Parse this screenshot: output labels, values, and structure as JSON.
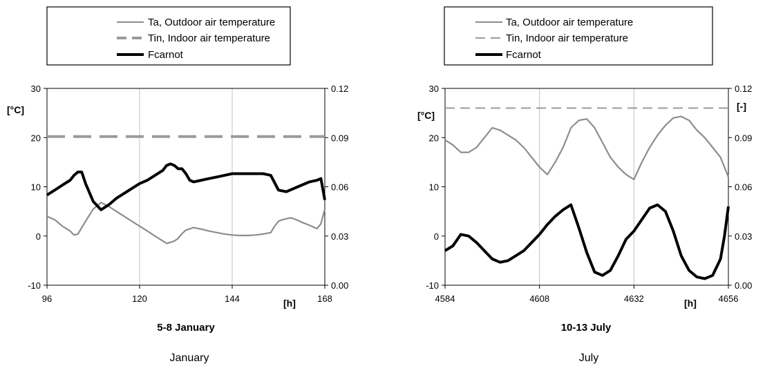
{
  "legend": {
    "ta": "Ta, Outdoor air temperature",
    "tin": "Tin, Indoor air temperature",
    "fc": "Fcarnot"
  },
  "captions": {
    "left": "January",
    "right": "July"
  },
  "colors": {
    "ta": "#8c8c8c",
    "tin": "#9a9a9a",
    "fc": "#000000",
    "grid": "#c0c0c0"
  },
  "chart_data": [
    {
      "type": "line",
      "xlabel": "5-8 January",
      "x_unit": "[h]",
      "y_left_unit": "[°C]",
      "y_right_unit": "",
      "xlim": [
        96,
        168
      ],
      "ylim_left": [
        -10,
        30
      ],
      "ylim_right": [
        0.0,
        0.12
      ],
      "x_ticks": [
        "96",
        "120",
        "144",
        "168"
      ],
      "y_left_ticks": [
        "-10",
        "0",
        "10",
        "20",
        "30"
      ],
      "y_right_ticks": [
        "0.00",
        "0.03",
        "0.06",
        "0.09",
        "0.12"
      ],
      "series": [
        {
          "name": "Ta, Outdoor air temperature",
          "axis": "left",
          "x": [
            96,
            98,
            100,
            102,
            103,
            104,
            106,
            108,
            110,
            112,
            114,
            116,
            118,
            120,
            122,
            124,
            126,
            127,
            128,
            129,
            130,
            131,
            132,
            134,
            136,
            138,
            140,
            142,
            144,
            146,
            148,
            150,
            152,
            154,
            155,
            156,
            157,
            158,
            159,
            160,
            162,
            164,
            166,
            167,
            168
          ],
          "y": [
            4.0,
            3.3,
            2.0,
            1.0,
            0.2,
            0.4,
            3.0,
            5.5,
            6.8,
            6.0,
            5.0,
            4.0,
            3.0,
            2.0,
            1.0,
            0.0,
            -1.0,
            -1.5,
            -1.3,
            -1.0,
            -0.5,
            0.5,
            1.2,
            1.7,
            1.4,
            1.0,
            0.7,
            0.4,
            0.2,
            0.1,
            0.1,
            0.2,
            0.4,
            0.7,
            2.0,
            3.0,
            3.3,
            3.5,
            3.7,
            3.5,
            2.8,
            2.2,
            1.5,
            2.5,
            5.5
          ]
        },
        {
          "name": "Tin, Indoor air temperature",
          "axis": "left",
          "x": [
            96,
            168
          ],
          "y": [
            20.2,
            20.2
          ]
        },
        {
          "name": "Fcarnot",
          "axis": "right",
          "x": [
            96,
            98,
            100,
            102,
            103,
            104,
            105,
            106,
            108,
            110,
            112,
            114,
            116,
            118,
            120,
            122,
            124,
            126,
            127,
            128,
            129,
            130,
            131,
            132,
            133,
            134,
            136,
            138,
            140,
            142,
            144,
            146,
            148,
            150,
            152,
            154,
            156,
            158,
            160,
            162,
            164,
            166,
            167,
            168
          ],
          "y": [
            0.055,
            0.058,
            0.061,
            0.064,
            0.067,
            0.069,
            0.069,
            0.062,
            0.051,
            0.046,
            0.049,
            0.053,
            0.056,
            0.059,
            0.062,
            0.064,
            0.067,
            0.07,
            0.073,
            0.074,
            0.073,
            0.071,
            0.071,
            0.068,
            0.064,
            0.063,
            0.064,
            0.065,
            0.066,
            0.067,
            0.068,
            0.068,
            0.068,
            0.068,
            0.068,
            0.067,
            0.058,
            0.057,
            0.059,
            0.061,
            0.063,
            0.064,
            0.065,
            0.052
          ]
        }
      ]
    },
    {
      "type": "line",
      "xlabel": "10-13 July",
      "x_unit": "[h]",
      "y_left_unit": "[°C]",
      "y_right_unit": "[-]",
      "xlim": [
        4584,
        4656
      ],
      "ylim_left": [
        -10,
        30
      ],
      "ylim_right": [
        0.0,
        0.12
      ],
      "x_ticks": [
        "4584",
        "4608",
        "4632",
        "4656"
      ],
      "y_left_ticks": [
        "-10",
        "0",
        "10",
        "20",
        "30"
      ],
      "y_right_ticks": [
        "0.00",
        "0.03",
        "0.06",
        "0.09",
        "0.12"
      ],
      "series": [
        {
          "name": "Ta, Outdoor air temperature",
          "axis": "left",
          "x": [
            4584,
            4586,
            4588,
            4590,
            4592,
            4594,
            4596,
            4598,
            4600,
            4602,
            4604,
            4606,
            4608,
            4610,
            4612,
            4614,
            4616,
            4618,
            4620,
            4622,
            4624,
            4626,
            4628,
            4630,
            4632,
            4634,
            4636,
            4638,
            4640,
            4642,
            4644,
            4646,
            4648,
            4650,
            4652,
            4654,
            4655,
            4656
          ],
          "y": [
            19.5,
            18.5,
            17.0,
            17.0,
            18.0,
            20.0,
            22.0,
            21.5,
            20.5,
            19.5,
            18.0,
            16.0,
            14.0,
            12.5,
            15.0,
            18.0,
            22.0,
            23.5,
            23.8,
            22.0,
            19.0,
            16.0,
            14.0,
            12.5,
            11.5,
            15.0,
            18.0,
            20.5,
            22.5,
            24.0,
            24.3,
            23.5,
            21.5,
            20.0,
            18.0,
            16.0,
            14.0,
            12.0
          ]
        },
        {
          "name": "Tin, Indoor air temperature",
          "axis": "left",
          "x": [
            4584,
            4656
          ],
          "y": [
            26.0,
            26.0
          ]
        },
        {
          "name": "Fcarnot",
          "axis": "right",
          "x": [
            4584,
            4586,
            4588,
            4590,
            4592,
            4594,
            4596,
            4598,
            4600,
            4602,
            4604,
            4606,
            4608,
            4610,
            4612,
            4614,
            4616,
            4618,
            4620,
            4622,
            4624,
            4626,
            4628,
            4630,
            4632,
            4634,
            4636,
            4638,
            4640,
            4642,
            4644,
            4646,
            4648,
            4650,
            4652,
            4654,
            4655,
            4656
          ],
          "y": [
            0.021,
            0.024,
            0.031,
            0.03,
            0.026,
            0.021,
            0.016,
            0.014,
            0.015,
            0.018,
            0.021,
            0.026,
            0.031,
            0.037,
            0.042,
            0.046,
            0.049,
            0.035,
            0.02,
            0.008,
            0.006,
            0.009,
            0.018,
            0.028,
            0.033,
            0.04,
            0.047,
            0.049,
            0.045,
            0.033,
            0.018,
            0.009,
            0.005,
            0.004,
            0.006,
            0.016,
            0.03,
            0.048
          ]
        }
      ]
    }
  ]
}
